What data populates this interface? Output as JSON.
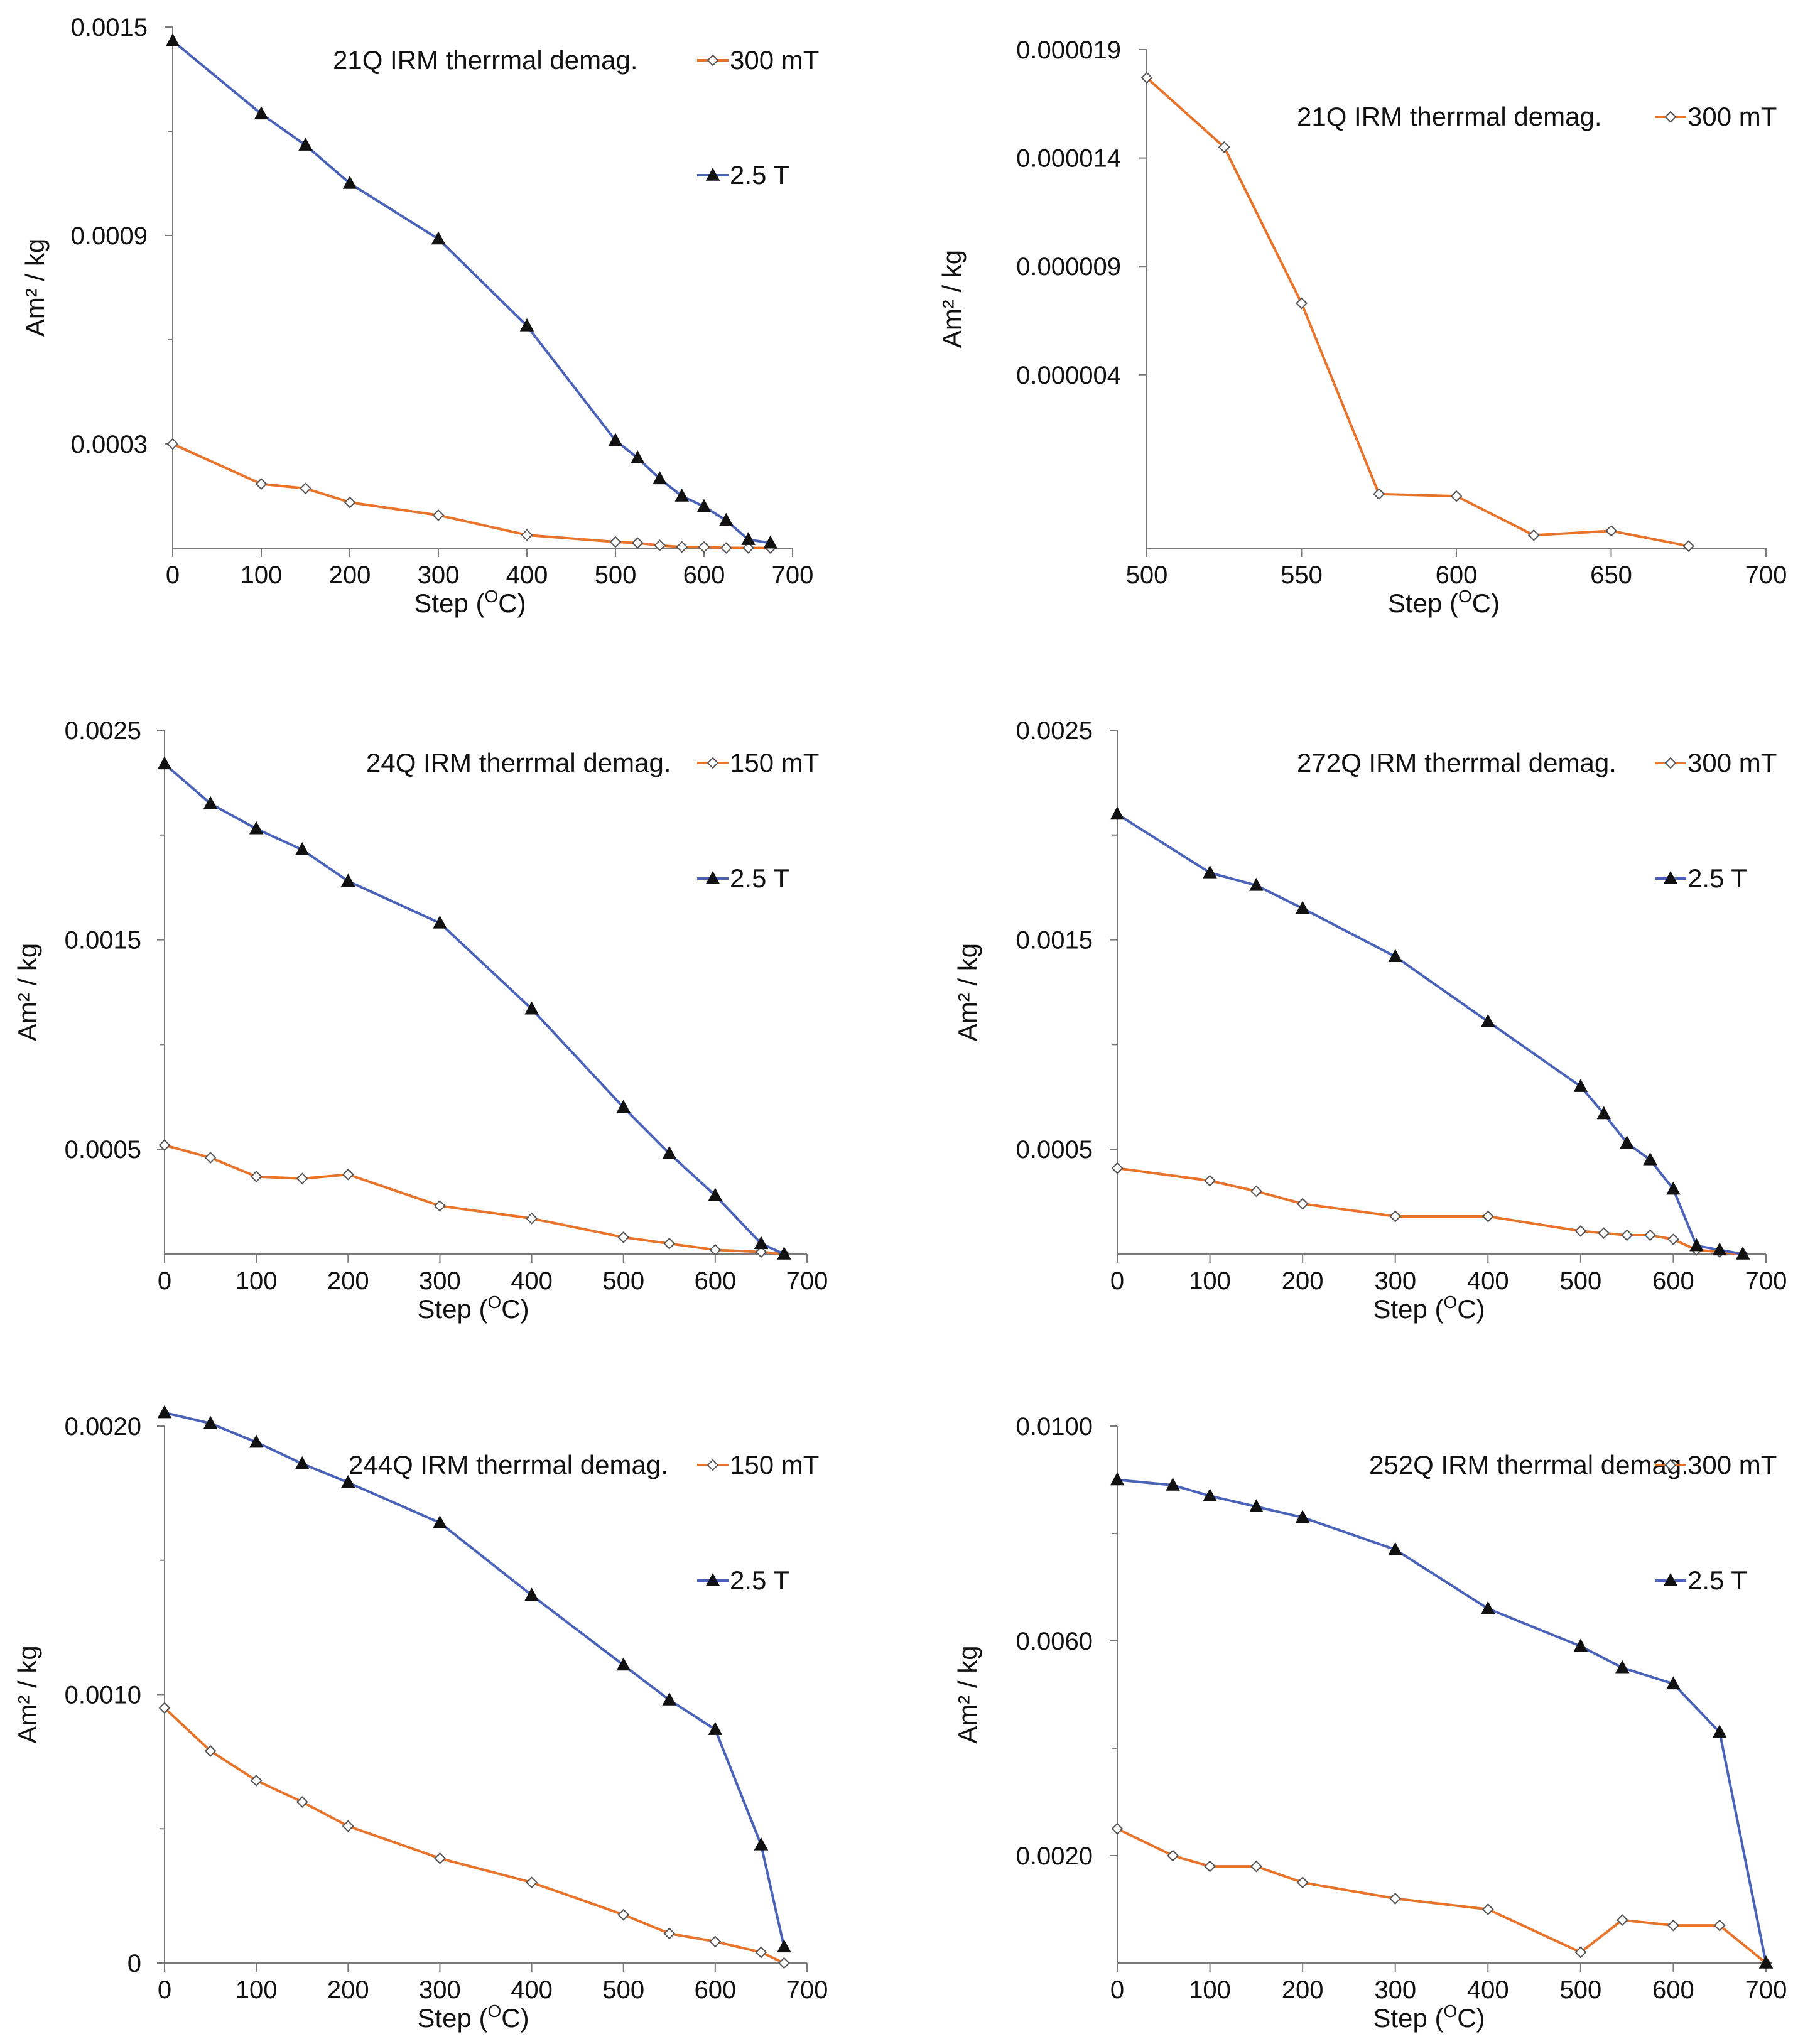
{
  "colors": {
    "orange": "#e8732a",
    "blue": "#4a62b8",
    "axis": "#7a7a7a",
    "text": "#111111"
  },
  "chart_data": [
    {
      "type": "line",
      "title": "21Q  IRM therrmal demag.",
      "xlabel": "Step (",
      "xlabel_sup": "O",
      "xlabel_tail": "C)",
      "ylabel": "Am² / kg",
      "xlim": [
        0,
        700
      ],
      "ylim": [
        0,
        0.0015
      ],
      "xticks": [
        0,
        100,
        200,
        300,
        400,
        500,
        600,
        700
      ],
      "xtick_labels": [
        "0",
        "100",
        "200",
        "300",
        "400",
        "500",
        "600",
        "700"
      ],
      "yticks": [
        0.0003,
        0.0009,
        0.0015
      ],
      "ytick_labels": [
        "0.0003",
        "0.0009",
        "0.0015"
      ],
      "yminor": [
        0.0006,
        0.0012
      ],
      "series": [
        {
          "name": "300 mT",
          "marker": "diamond",
          "color": "#e8732a",
          "x": [
            0,
            100,
            150,
            200,
            300,
            400,
            500,
            525,
            550,
            575,
            600,
            625,
            650,
            675
          ],
          "y": [
            0.0003,
            0.000185,
            0.000172,
            0.000132,
            9.5e-05,
            3.8e-05,
            1.8e-05,
            1.5e-05,
            8e-06,
            3.5e-06,
            3.4e-06,
            8e-07,
            1e-06,
            5e-07
          ]
        },
        {
          "name": "2.5 T",
          "marker": "triangle",
          "color": "#4a62b8",
          "x": [
            0,
            100,
            150,
            200,
            300,
            400,
            500,
            525,
            550,
            575,
            600,
            625,
            650,
            675
          ],
          "y": [
            0.00146,
            0.00125,
            0.00116,
            0.00105,
            0.00089,
            0.00064,
            0.00031,
            0.00026,
            0.0002,
            0.00015,
            0.00012,
            8e-05,
            2.5e-05,
            1.5e-05
          ]
        }
      ]
    },
    {
      "type": "line",
      "title": "21Q  IRM therrmal demag.",
      "xlabel": "Step (",
      "xlabel_sup": "O",
      "xlabel_tail": "C)",
      "ylabel": "Am² / kg",
      "xlim": [
        500,
        700
      ],
      "ylim": [
        -4e-06,
        1.9e-05
      ],
      "xticks": [
        500,
        550,
        600,
        650,
        700
      ],
      "xtick_labels": [
        "500",
        "550",
        "600",
        "650",
        "700"
      ],
      "yticks": [
        4e-06,
        9e-06,
        1.4e-05,
        1.9e-05
      ],
      "ytick_labels": [
        "0.000004",
        "0.000009",
        "0.000014",
        "0.000019"
      ],
      "yminor": [],
      "series": [
        {
          "name": "300 mT",
          "marker": "diamond",
          "color": "#e8732a",
          "x": [
            500,
            525,
            550,
            575,
            600,
            625,
            650,
            675
          ],
          "y": [
            1.77e-05,
            1.45e-05,
            7.3e-06,
            -1.5e-06,
            -1.6e-06,
            -3.4e-06,
            -3.2e-06,
            -3.9e-06
          ]
        }
      ]
    },
    {
      "type": "line",
      "title": "24Q  IRM therrmal demag.",
      "xlabel": "Step (",
      "xlabel_sup": "O",
      "xlabel_tail": "C)",
      "ylabel": "Am² / kg",
      "xlim": [
        0,
        700
      ],
      "ylim": [
        0,
        0.0025
      ],
      "xticks": [
        0,
        100,
        200,
        300,
        400,
        500,
        600,
        700
      ],
      "xtick_labels": [
        "0",
        "100",
        "200",
        "300",
        "400",
        "500",
        "600",
        "700"
      ],
      "yticks": [
        0.0005,
        0.0015,
        0.0025
      ],
      "ytick_labels": [
        "0.0005",
        "0.0015",
        "0.0025"
      ],
      "yminor": [
        0.001,
        0.002
      ],
      "series": [
        {
          "name": "150 mT",
          "marker": "diamond",
          "color": "#e8732a",
          "x": [
            0,
            50,
            100,
            150,
            200,
            300,
            400,
            500,
            550,
            600,
            650,
            675
          ],
          "y": [
            0.00052,
            0.00046,
            0.00037,
            0.00036,
            0.00038,
            0.00023,
            0.00017,
            8e-05,
            5e-05,
            2e-05,
            1e-05,
            0.0
          ]
        },
        {
          "name": "2.5 T",
          "marker": "triangle",
          "color": "#4a62b8",
          "x": [
            0,
            50,
            100,
            150,
            200,
            300,
            400,
            500,
            550,
            600,
            650,
            675
          ],
          "y": [
            0.00234,
            0.00215,
            0.00203,
            0.00193,
            0.00178,
            0.00158,
            0.00117,
            0.0007,
            0.00048,
            0.00028,
            5e-05,
            0.0
          ]
        }
      ]
    },
    {
      "type": "line",
      "title": "272Q  IRM therrmal demag.",
      "xlabel": "Step (",
      "xlabel_sup": "O",
      "xlabel_tail": "C)",
      "ylabel": "Am² / kg",
      "xlim": [
        0,
        700
      ],
      "ylim": [
        0,
        0.0025
      ],
      "xticks": [
        0,
        100,
        200,
        300,
        400,
        500,
        600,
        700
      ],
      "xtick_labels": [
        "0",
        "100",
        "200",
        "300",
        "400",
        "500",
        "600",
        "700"
      ],
      "yticks": [
        0.0005,
        0.0015,
        0.0025
      ],
      "ytick_labels": [
        "0.0005",
        "0.0015",
        "0.0025"
      ],
      "yminor": [
        0.001,
        0.002
      ],
      "series": [
        {
          "name": "300 mT",
          "marker": "diamond",
          "color": "#e8732a",
          "x": [
            0,
            100,
            150,
            200,
            300,
            400,
            500,
            525,
            550,
            575,
            600,
            625,
            650,
            675
          ],
          "y": [
            0.00041,
            0.00035,
            0.0003,
            0.00024,
            0.00018,
            0.00018,
            0.00011,
            0.0001,
            9e-05,
            9e-05,
            7e-05,
            2e-05,
            1e-05,
            0.0
          ]
        },
        {
          "name": "2.5 T",
          "marker": "triangle",
          "color": "#4a62b8",
          "x": [
            0,
            100,
            150,
            200,
            300,
            400,
            500,
            525,
            550,
            575,
            600,
            625,
            650,
            675
          ],
          "y": [
            0.0021,
            0.00182,
            0.00176,
            0.00165,
            0.00142,
            0.00111,
            0.0008,
            0.00067,
            0.00053,
            0.00045,
            0.00031,
            4e-05,
            2e-05,
            0.0
          ]
        }
      ]
    },
    {
      "type": "line",
      "title": "244Q  IRM therrmal demag.",
      "xlabel": "Step (",
      "xlabel_sup": "O",
      "xlabel_tail": "C)",
      "ylabel": "Am² / kg",
      "xlim": [
        0,
        700
      ],
      "ylim": [
        0,
        0.002
      ],
      "xticks": [
        0,
        100,
        200,
        300,
        400,
        500,
        600,
        700
      ],
      "xtick_labels": [
        "0",
        "100",
        "200",
        "300",
        "400",
        "500",
        "600",
        "700"
      ],
      "yticks": [
        0,
        0.001,
        0.002
      ],
      "ytick_labels": [
        "0",
        "0.0010",
        "0.0020"
      ],
      "yminor": [
        0.0005,
        0.0015
      ],
      "series": [
        {
          "name": "150 mT",
          "marker": "diamond",
          "color": "#e8732a",
          "x": [
            0,
            50,
            100,
            150,
            200,
            300,
            400,
            500,
            550,
            600,
            650,
            675
          ],
          "y": [
            0.00095,
            0.00079,
            0.00068,
            0.0006,
            0.00051,
            0.00039,
            0.0003,
            0.00018,
            0.00011,
            8e-05,
            4e-05,
            0.0
          ]
        },
        {
          "name": "2.5 T",
          "marker": "triangle",
          "color": "#4a62b8",
          "x": [
            0,
            50,
            100,
            150,
            200,
            300,
            400,
            500,
            550,
            600,
            650,
            675
          ],
          "y": [
            0.00205,
            0.00201,
            0.00194,
            0.00186,
            0.00179,
            0.00164,
            0.00137,
            0.00111,
            0.00098,
            0.00087,
            0.00044,
            6e-05
          ]
        }
      ]
    },
    {
      "type": "line",
      "title": "252Q  IRM therrmal demag.",
      "xlabel": "Step (",
      "xlabel_sup": "O",
      "xlabel_tail": "C)",
      "ylabel": "Am² / kg",
      "xlim": [
        0,
        700
      ],
      "ylim": [
        0,
        0.01
      ],
      "xticks": [
        0,
        100,
        200,
        300,
        400,
        500,
        600,
        700
      ],
      "xtick_labels": [
        "0",
        "100",
        "200",
        "300",
        "400",
        "500",
        "600",
        "700"
      ],
      "yticks": [
        0.002,
        0.006,
        0.01
      ],
      "ytick_labels": [
        "0.0020",
        "0.0060",
        "0.0100"
      ],
      "yminor": [
        0.004,
        0.008
      ],
      "series": [
        {
          "name": "300 mT",
          "marker": "diamond",
          "color": "#e8732a",
          "x": [
            0,
            60,
            100,
            150,
            200,
            300,
            400,
            500,
            545,
            600,
            650,
            700
          ],
          "y": [
            0.0025,
            0.002,
            0.0018,
            0.0018,
            0.0015,
            0.0012,
            0.001,
            0.0002,
            0.0008,
            0.0007,
            0.0007,
            0.0
          ]
        },
        {
          "name": "2.5 T",
          "marker": "triangle",
          "color": "#4a62b8",
          "x": [
            0,
            60,
            100,
            150,
            200,
            300,
            400,
            500,
            545,
            600,
            650,
            700
          ],
          "y": [
            0.009,
            0.0089,
            0.0087,
            0.0085,
            0.0083,
            0.0077,
            0.0066,
            0.0059,
            0.0055,
            0.0052,
            0.0043,
            0.0
          ]
        }
      ]
    }
  ]
}
